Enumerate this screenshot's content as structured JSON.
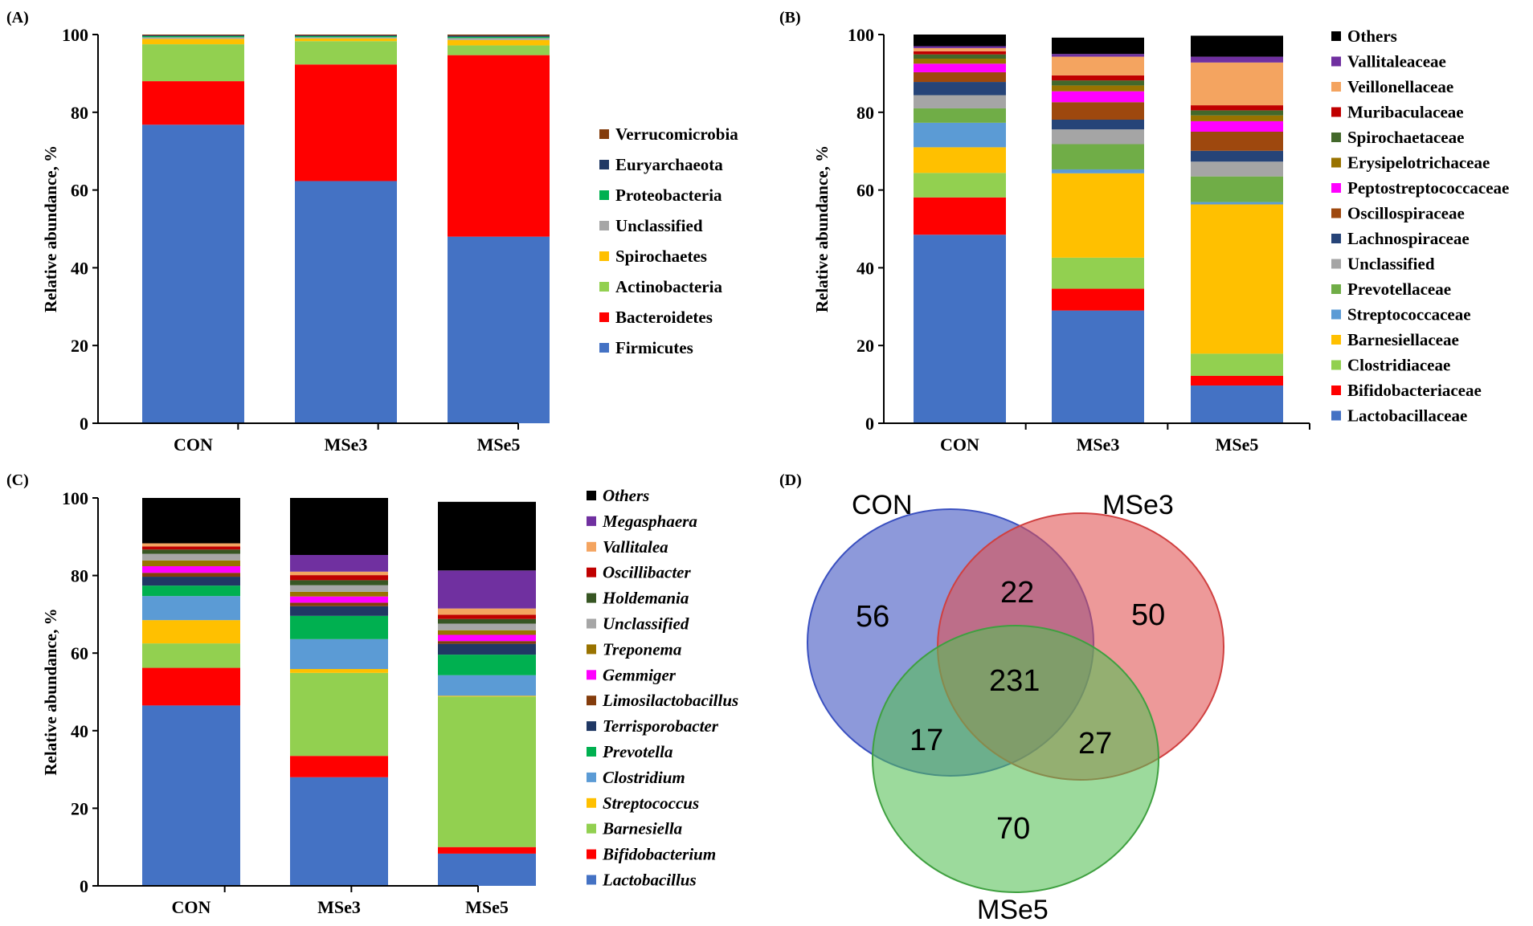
{
  "panels": {
    "A": {
      "label": "(A)"
    },
    "B": {
      "label": "(B)"
    },
    "C": {
      "label": "(C)"
    },
    "D": {
      "label": "(D)"
    }
  },
  "chart_data": [
    {
      "id": "A",
      "type": "bar",
      "stacked": true,
      "title": "",
      "xlabel": "",
      "ylabel": "Relative abundance, %",
      "ylim": [
        0,
        100
      ],
      "yticks": [
        0,
        20,
        40,
        60,
        80,
        100
      ],
      "categories": [
        "CON",
        "MSe3",
        "MSe5"
      ],
      "legend_italic": false,
      "series": [
        {
          "name": "Firmicutes",
          "color": "#4472C4",
          "values": [
            76.8,
            62.3,
            48.0
          ]
        },
        {
          "name": "Bacteroidetes",
          "color": "#FF0000",
          "values": [
            11.2,
            30.0,
            46.7
          ]
        },
        {
          "name": "Actinobacteria",
          "color": "#92D050",
          "values": [
            9.5,
            6.0,
            2.5
          ]
        },
        {
          "name": "Spirochaetes",
          "color": "#FFC000",
          "values": [
            1.4,
            0.7,
            1.4
          ]
        },
        {
          "name": "Unclassified",
          "color": "#A6A6A6",
          "values": [
            0.4,
            0.3,
            0.5
          ]
        },
        {
          "name": "Proteobacteria",
          "color": "#00B050",
          "values": [
            0.3,
            0.3,
            0.3
          ]
        },
        {
          "name": "Euryarchaeota",
          "color": "#203864",
          "values": [
            0.2,
            0.2,
            0.3
          ]
        },
        {
          "name": "Verrucomicrobia",
          "color": "#843C0C",
          "values": [
            0.2,
            0.2,
            0.3
          ]
        }
      ]
    },
    {
      "id": "B",
      "type": "bar",
      "stacked": true,
      "title": "",
      "xlabel": "",
      "ylabel": "Relative abundance, %",
      "ylim": [
        0,
        100
      ],
      "yticks": [
        0,
        20,
        40,
        60,
        80,
        100
      ],
      "categories": [
        "CON",
        "MSe3",
        "MSe5"
      ],
      "legend_italic": false,
      "series": [
        {
          "name": "Lactobacillaceae",
          "color": "#4472C4",
          "values": [
            48.5,
            29.0,
            9.7
          ]
        },
        {
          "name": "Bifidobacteriaceae",
          "color": "#FF0000",
          "values": [
            9.6,
            5.6,
            2.5
          ]
        },
        {
          "name": "Clostridiaceae",
          "color": "#92D050",
          "values": [
            6.3,
            8.0,
            5.7
          ]
        },
        {
          "name": "Barnesiellaceae",
          "color": "#FFC000",
          "values": [
            6.6,
            21.7,
            38.4
          ]
        },
        {
          "name": "Streptococcaceae",
          "color": "#5B9BD5",
          "values": [
            6.3,
            1.0,
            0.6
          ]
        },
        {
          "name": "Prevotellaceae",
          "color": "#70AD47",
          "values": [
            3.7,
            6.5,
            6.6
          ]
        },
        {
          "name": "Unclassified",
          "color": "#A5A5A5",
          "values": [
            3.4,
            3.8,
            3.8
          ]
        },
        {
          "name": "Lachnospiraceae",
          "color": "#264478",
          "values": [
            3.4,
            2.5,
            2.8
          ]
        },
        {
          "name": "Oscillospiraceae",
          "color": "#9E480E",
          "values": [
            2.5,
            4.5,
            4.9
          ]
        },
        {
          "name": "Peptostreptococcaceae",
          "color": "#FF00FF",
          "values": [
            2.2,
            2.8,
            2.7
          ]
        },
        {
          "name": "Erysipelotrichaceae",
          "color": "#997300",
          "values": [
            1.3,
            1.5,
            1.5
          ]
        },
        {
          "name": "Spirochaetaceae",
          "color": "#43682B",
          "values": [
            1.1,
            1.3,
            1.3
          ]
        },
        {
          "name": "Muribaculaceae",
          "color": "#C00000",
          "values": [
            0.8,
            1.3,
            1.3
          ]
        },
        {
          "name": "Veillonellaceae",
          "color": "#F4A460",
          "values": [
            0.8,
            4.8,
            11.0
          ]
        },
        {
          "name": "Vallitaleaceae",
          "color": "#7030A0",
          "values": [
            0.5,
            0.7,
            1.5
          ]
        },
        {
          "name": "Others",
          "color": "#000000",
          "values": [
            3.0,
            4.2,
            5.4
          ]
        }
      ]
    },
    {
      "id": "C",
      "type": "bar",
      "stacked": true,
      "title": "",
      "xlabel": "",
      "ylabel": "Relative abundance, %",
      "ylim": [
        0,
        100
      ],
      "yticks": [
        0,
        20,
        40,
        60,
        80,
        100
      ],
      "categories": [
        "CON",
        "MSe3",
        "MSe5"
      ],
      "legend_italic": true,
      "series": [
        {
          "name": "Lactobacillus",
          "color": "#4472C4",
          "values": [
            46.5,
            28.0,
            8.3
          ]
        },
        {
          "name": "Bifidobacterium",
          "color": "#FF0000",
          "values": [
            9.7,
            5.5,
            1.7
          ]
        },
        {
          "name": "Barnesiella",
          "color": "#92D050",
          "values": [
            6.3,
            21.4,
            38.8
          ]
        },
        {
          "name": "Streptococcus",
          "color": "#FFC000",
          "values": [
            6.0,
            1.0,
            0.2
          ]
        },
        {
          "name": "Clostridium",
          "color": "#5B9BD5",
          "values": [
            6.2,
            7.7,
            5.3
          ]
        },
        {
          "name": "Prevotella",
          "color": "#00B050",
          "values": [
            2.7,
            6.0,
            5.3
          ]
        },
        {
          "name": "Terrisporobacter",
          "color": "#203864",
          "values": [
            2.3,
            2.5,
            2.8
          ]
        },
        {
          "name": "Limosilactobacillus",
          "color": "#843C0C",
          "values": [
            1.0,
            0.9,
            0.7
          ]
        },
        {
          "name": "Gemmiger",
          "color": "#FF00FF",
          "values": [
            1.7,
            1.6,
            1.6
          ]
        },
        {
          "name": "Treponema",
          "color": "#997300",
          "values": [
            1.5,
            1.2,
            1.2
          ]
        },
        {
          "name": "Unclassified",
          "color": "#A6A6A6",
          "values": [
            1.7,
            1.7,
            1.7
          ]
        },
        {
          "name": "Holdemania",
          "color": "#375623",
          "values": [
            1.1,
            1.3,
            1.2
          ]
        },
        {
          "name": "Oscillibacter",
          "color": "#C00000",
          "values": [
            0.8,
            1.3,
            1.1
          ]
        },
        {
          "name": "Vallitalea",
          "color": "#F4A460",
          "values": [
            0.8,
            0.9,
            1.6
          ]
        },
        {
          "name": "Megasphaera",
          "color": "#7030A0",
          "values": [
            0.0,
            4.3,
            9.8
          ]
        },
        {
          "name": "Others",
          "color": "#000000",
          "values": [
            11.7,
            14.7,
            17.7
          ]
        }
      ]
    }
  ],
  "venn": {
    "sets": [
      {
        "label": "CON",
        "color": "#3A50C0"
      },
      {
        "label": "MSe3",
        "color": "#E05050"
      },
      {
        "label": "MSe5",
        "color": "#3FB040"
      }
    ],
    "counts": {
      "only_con": "56",
      "only_mse3": "50",
      "only_mse5": "70",
      "con_mse3": "22",
      "con_mse5": "17",
      "mse3_mse5": "27",
      "all": "231"
    }
  }
}
